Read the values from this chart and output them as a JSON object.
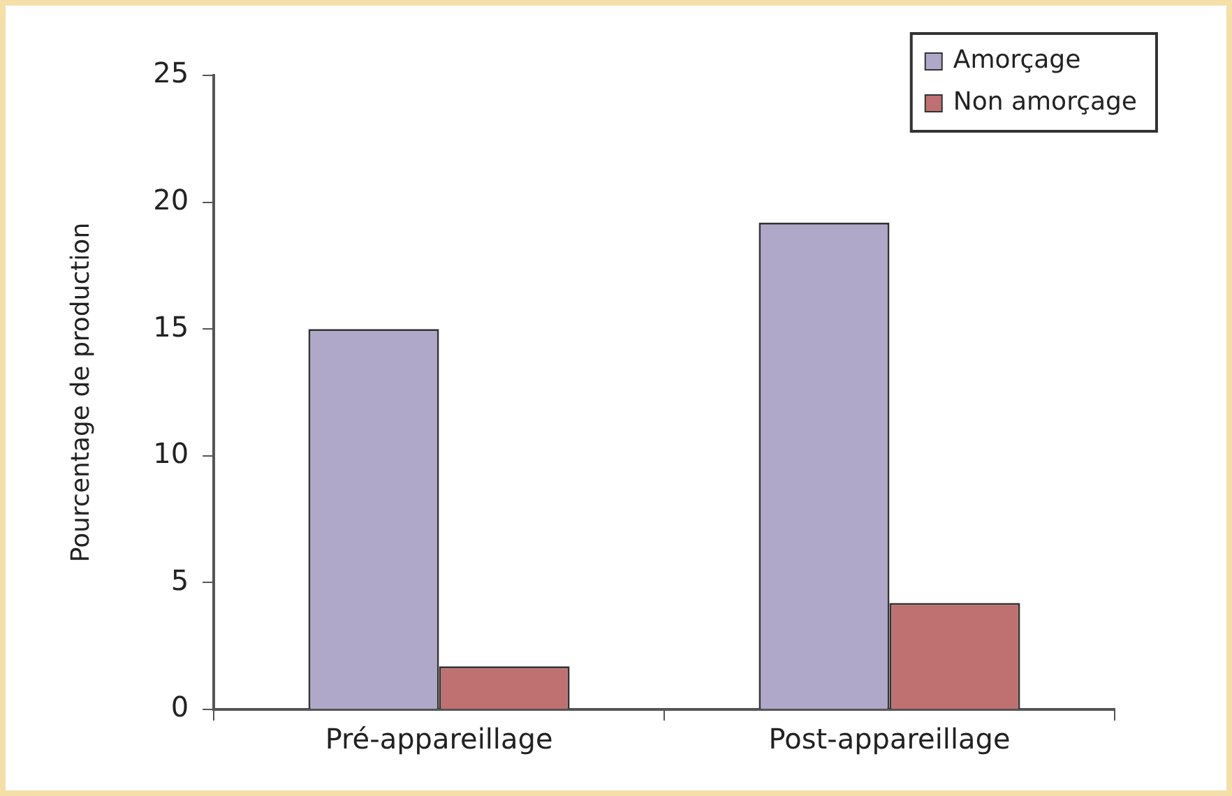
{
  "chart_data": {
    "type": "bar",
    "ylabel": "Pourcentage de production",
    "categories": [
      "Pré-appareillage",
      "Post-appareillage"
    ],
    "series": [
      {
        "name": "Amorçage",
        "color": "#b0a8c8",
        "values": [
          15,
          19.2
        ]
      },
      {
        "name": "Non amorçage",
        "color": "#bf7070",
        "values": [
          1.7,
          4.2
        ]
      }
    ],
    "ylim": [
      0,
      25
    ],
    "yticks": [
      0,
      5,
      10,
      15,
      20,
      25
    ],
    "grid": false,
    "legend": "top right"
  }
}
